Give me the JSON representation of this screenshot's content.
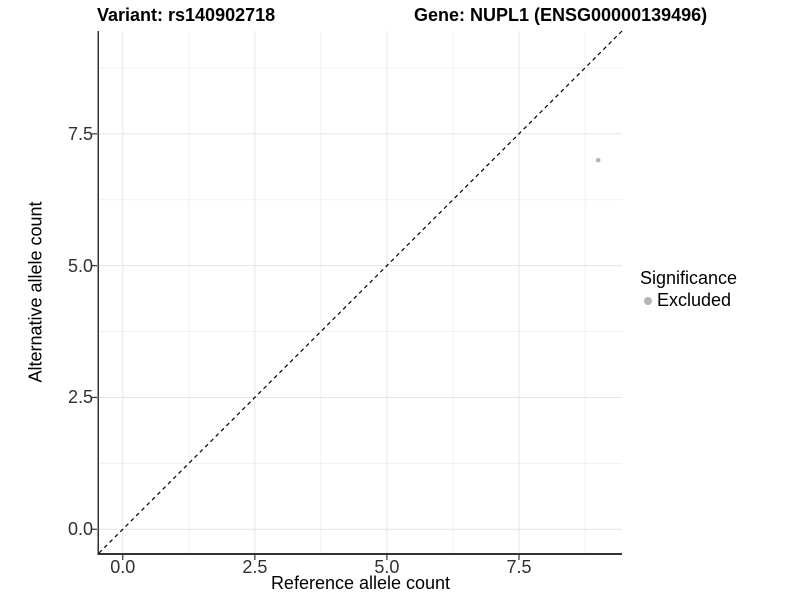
{
  "titles": {
    "variant": "Variant: rs140902718",
    "gene": "Gene: NUPL1 (ENSG00000139496)"
  },
  "axes": {
    "x_label": "Reference allele count",
    "y_label": "Alternative allele count"
  },
  "legend": {
    "title": "Significance",
    "items": [
      {
        "label": "Excluded",
        "color": "#b5b5b5"
      }
    ]
  },
  "chart_data": {
    "type": "scatter",
    "title": "Variant: rs140902718 | Gene: NUPL1 (ENSG00000139496)",
    "xlabel": "Reference allele count",
    "ylabel": "Alternative allele count",
    "xlim": [
      -0.45,
      9.45
    ],
    "ylim": [
      -0.45,
      9.45
    ],
    "x_ticks": {
      "values": [
        0,
        2.5,
        5,
        7.5
      ],
      "labels": [
        "0.0",
        "2.5",
        "5.0",
        "7.5"
      ]
    },
    "y_ticks": {
      "values": [
        0,
        2.5,
        5,
        7.5
      ],
      "labels": [
        "0.0",
        "2.5",
        "5.0",
        "7.5"
      ]
    },
    "minor_ticks": [
      1.25,
      3.75,
      6.25,
      8.75
    ],
    "grid": true,
    "legend_position": "right",
    "series": [
      {
        "name": "Excluded",
        "color": "#b5b5b5",
        "marker": "circle",
        "points": [
          {
            "x": 9,
            "y": 7
          }
        ]
      }
    ],
    "reference_line": {
      "equation": "y = x",
      "style": "dashed",
      "color": "#000000"
    }
  },
  "style": {
    "grid_major_color": "#e4e4e4",
    "grid_minor_color": "#f1f1f1",
    "axis_line_color": "#333333",
    "tick_color": "#333333",
    "point_color": "#b5b5b5"
  }
}
